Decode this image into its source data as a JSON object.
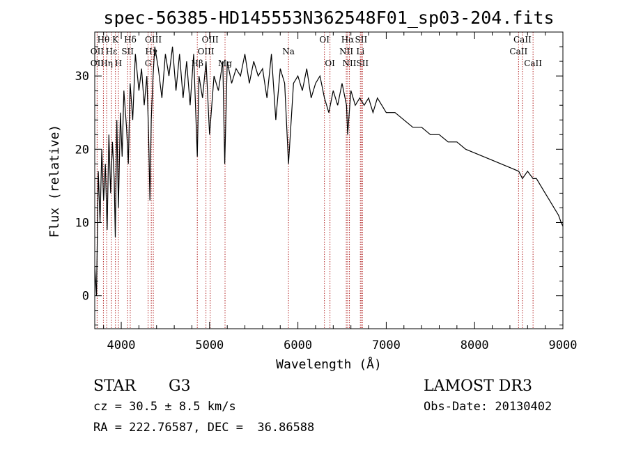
{
  "chart_data": {
    "type": "line",
    "title": "spec-56385-HD145553N362548F01_sp03-204.fits",
    "xlabel": "Wavelength (Å)",
    "ylabel": "Flux (relative)",
    "xlim": [
      3700,
      9000
    ],
    "ylim": [
      -4.5,
      36
    ],
    "xticks": [
      4000,
      5000,
      6000,
      7000,
      8000,
      9000
    ],
    "yticks": [
      0,
      10,
      20,
      30
    ],
    "grid": false,
    "series": [
      {
        "name": "spectrum",
        "x": [
          3700,
          3720,
          3740,
          3760,
          3780,
          3800,
          3820,
          3840,
          3860,
          3880,
          3900,
          3920,
          3933,
          3950,
          3968,
          3990,
          4010,
          4030,
          4060,
          4080,
          4101,
          4130,
          4160,
          4200,
          4230,
          4260,
          4290,
          4310,
          4325,
          4340,
          4360,
          4380,
          4420,
          4460,
          4500,
          4540,
          4580,
          4620,
          4660,
          4700,
          4740,
          4780,
          4820,
          4861,
          4880,
          4920,
          4960,
          5000,
          5050,
          5100,
          5150,
          5172,
          5200,
          5250,
          5300,
          5350,
          5400,
          5450,
          5500,
          5550,
          5600,
          5650,
          5700,
          5750,
          5800,
          5850,
          5893,
          5950,
          6000,
          6050,
          6100,
          6150,
          6200,
          6250,
          6300,
          6350,
          6400,
          6450,
          6500,
          6550,
          6563,
          6600,
          6650,
          6700,
          6750,
          6800,
          6850,
          6900,
          6950,
          7000,
          7100,
          7200,
          7300,
          7400,
          7500,
          7600,
          7700,
          7800,
          7900,
          8000,
          8100,
          8200,
          8300,
          8400,
          8500,
          8542,
          8600,
          8662,
          8700,
          8750,
          8800,
          8850,
          8900,
          8950,
          8980,
          9000
        ],
        "values": [
          4,
          0,
          17,
          10,
          20,
          13,
          18,
          9,
          22,
          14,
          21,
          16,
          8,
          24,
          12,
          25,
          19,
          28,
          23,
          18,
          29,
          24,
          33,
          28,
          31,
          26,
          30,
          22,
          13,
          24,
          30,
          34,
          31,
          27,
          33,
          30,
          34,
          28,
          33,
          27,
          32,
          26,
          33,
          19,
          30,
          27,
          32,
          22,
          30,
          28,
          32,
          18,
          32,
          29,
          31,
          30,
          33,
          29,
          32,
          30,
          31,
          27,
          33,
          24,
          31,
          29,
          18,
          29,
          30,
          28,
          31,
          27,
          29,
          30,
          27,
          25,
          28,
          26,
          29,
          26,
          22,
          28,
          26,
          27,
          26,
          27,
          25,
          27,
          26,
          25,
          25,
          24,
          23,
          23,
          22,
          22,
          21,
          21,
          20,
          19.5,
          19,
          18.5,
          18,
          17.5,
          17,
          16,
          17,
          16,
          16,
          15,
          14,
          13,
          12,
          11,
          10,
          9.5
        ]
      }
    ],
    "lines": [
      {
        "name": "OII",
        "x": 3727,
        "row": 2
      },
      {
        "name": "Hθ",
        "x": 3798,
        "row": 0
      },
      {
        "name": "OII",
        "x": 3727,
        "row": 1
      },
      {
        "name": "Hη",
        "x": 3835,
        "row": 2
      },
      {
        "name": "Hε",
        "x": 3889,
        "row": 1
      },
      {
        "name": "K",
        "x": 3934,
        "row": 0
      },
      {
        "name": "SII",
        "x": 4072,
        "row": 1
      },
      {
        "name": "H",
        "x": 3968,
        "row": 2
      },
      {
        "name": "Hδ",
        "x": 4102,
        "row": 0
      },
      {
        "name": "OIII",
        "x": 4363,
        "row": 0
      },
      {
        "name": "Hγ",
        "x": 4340,
        "row": 1
      },
      {
        "name": "G",
        "x": 4304,
        "row": 2
      },
      {
        "name": "Hβ",
        "x": 4861,
        "row": 2
      },
      {
        "name": "OIII",
        "x": 5007,
        "row": 0
      },
      {
        "name": "OIII",
        "x": 4959,
        "row": 1
      },
      {
        "name": "Mg",
        "x": 5175,
        "row": 2
      },
      {
        "name": "Na",
        "x": 5893,
        "row": 1
      },
      {
        "name": "OI",
        "x": 6300,
        "row": 0
      },
      {
        "name": "OI",
        "x": 6363,
        "row": 2
      },
      {
        "name": "Hα",
        "x": 6563,
        "row": 0
      },
      {
        "name": "NII",
        "x": 6548,
        "row": 1
      },
      {
        "name": "NII",
        "x": 6583,
        "row": 2
      },
      {
        "name": "SII",
        "x": 6716,
        "row": 0
      },
      {
        "name": "Li",
        "x": 6707,
        "row": 1
      },
      {
        "name": "SII",
        "x": 6731,
        "row": 2
      },
      {
        "name": "CaII",
        "x": 8542,
        "row": 0
      },
      {
        "name": "CaII",
        "x": 8498,
        "row": 1
      },
      {
        "name": "CaII",
        "x": 8662,
        "row": 2
      }
    ]
  },
  "info": {
    "object_class": "STAR",
    "subclass": "G3",
    "survey": "LAMOST DR3",
    "cz": "cz = 30.5 ± 8.5 km/s",
    "obs_date": "Obs-Date: 20130402",
    "coords": "RA = 222.76587, DEC =  36.86588"
  },
  "colors": {
    "line_marker": "#b22222",
    "spectrum": "#000000",
    "axes": "#000000"
  }
}
